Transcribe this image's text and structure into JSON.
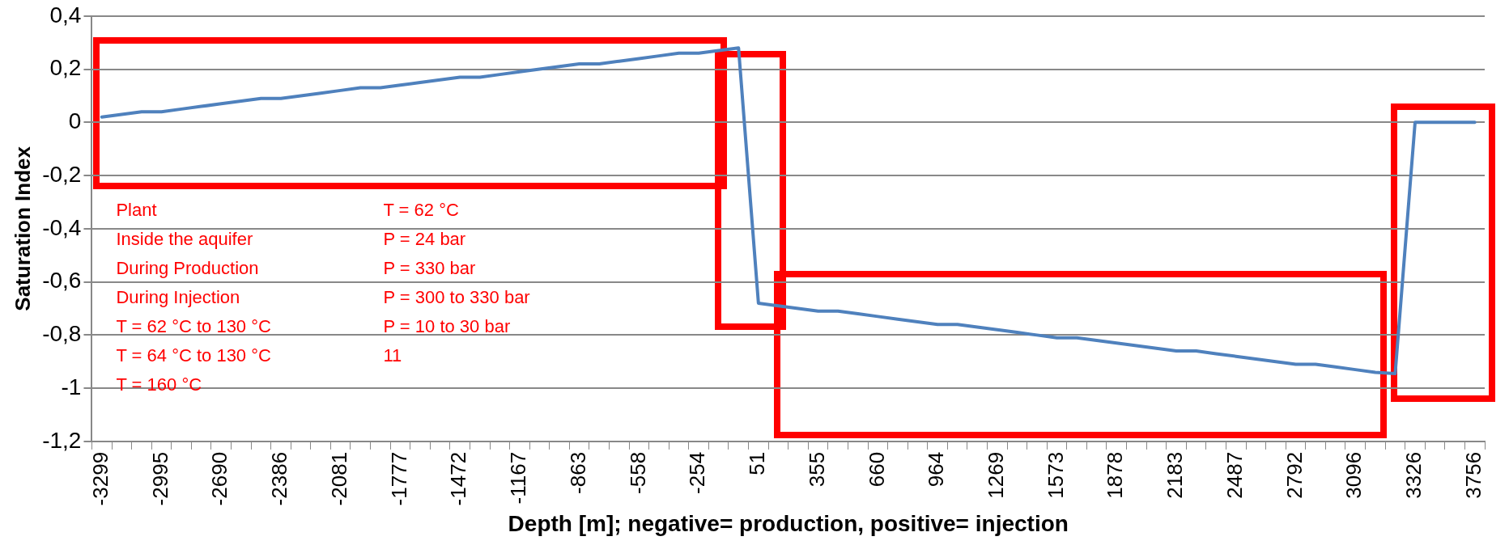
{
  "chart_data": {
    "type": "line",
    "xlabel": "Depth [m]; negative= production, positive= injection",
    "ylabel": "Saturation Index",
    "categories": [
      "-3299",
      null,
      null,
      "-2995",
      null,
      null,
      "-2690",
      null,
      null,
      "-2386",
      null,
      null,
      "-2081",
      null,
      null,
      "-1777",
      null,
      null,
      "-1472",
      null,
      null,
      "-1167",
      null,
      null,
      "-863",
      null,
      null,
      "-558",
      null,
      null,
      "-254",
      null,
      null,
      "51",
      null,
      null,
      "355",
      null,
      null,
      "660",
      null,
      null,
      "964",
      null,
      null,
      "1269",
      null,
      null,
      "1573",
      null,
      null,
      "1878",
      null,
      null,
      "2183",
      null,
      null,
      "2487",
      null,
      null,
      "2792",
      null,
      null,
      "3096",
      null,
      null,
      "3326",
      null,
      null,
      "3756"
    ],
    "series": [
      {
        "color": "#4f81bd",
        "values": [
          0.02,
          0.03,
          0.04,
          0.04,
          0.05,
          0.06,
          0.07,
          0.08,
          0.09,
          0.09,
          0.1,
          0.11,
          0.12,
          0.13,
          0.13,
          0.14,
          0.15,
          0.16,
          0.17,
          0.17,
          0.18,
          0.19,
          0.2,
          0.21,
          0.22,
          0.22,
          0.23,
          0.24,
          0.25,
          0.26,
          0.26,
          0.27,
          0.28,
          -0.68,
          -0.69,
          -0.7,
          -0.71,
          -0.71,
          -0.72,
          -0.73,
          -0.74,
          -0.75,
          -0.76,
          -0.76,
          -0.77,
          -0.78,
          -0.79,
          -0.8,
          -0.81,
          -0.81,
          -0.82,
          -0.83,
          -0.84,
          -0.85,
          -0.86,
          -0.86,
          -0.87,
          -0.88,
          -0.89,
          -0.9,
          -0.91,
          -0.91,
          -0.92,
          -0.93,
          -0.94,
          -0.945,
          0,
          0,
          0,
          0
        ]
      }
    ],
    "ylim": [
      -1.2,
      0.4
    ],
    "yticks": [
      {
        "value": -1.2,
        "label": "-1,2"
      },
      {
        "value": -1,
        "label": "-1"
      },
      {
        "value": -0.8,
        "label": "-0,8"
      },
      {
        "value": -0.6,
        "label": "-0,6"
      },
      {
        "value": -0.4,
        "label": "-0,4"
      },
      {
        "value": -0.2,
        "label": "-0,2"
      },
      0,
      {
        "value": 0.2,
        "label": "0,2"
      },
      {
        "value": 0.4,
        "label": "0,4"
      }
    ],
    "grid": "y",
    "legend": false,
    "marker": "none",
    "line_style": "solid",
    "annotations": [
      "Plant",
      "Inside the aquifer",
      "During Production",
      "During Injection",
      "T = 62 °C to 130 °C",
      "T = 64 °C to 130 °C",
      "T = 160 °C",
      "T = 62 °C",
      "P = 24 bar",
      "P = 330 bar",
      "P = 300 to 330 bar",
      "P = 10 to 30 bar",
      "11"
    ]
  }
}
